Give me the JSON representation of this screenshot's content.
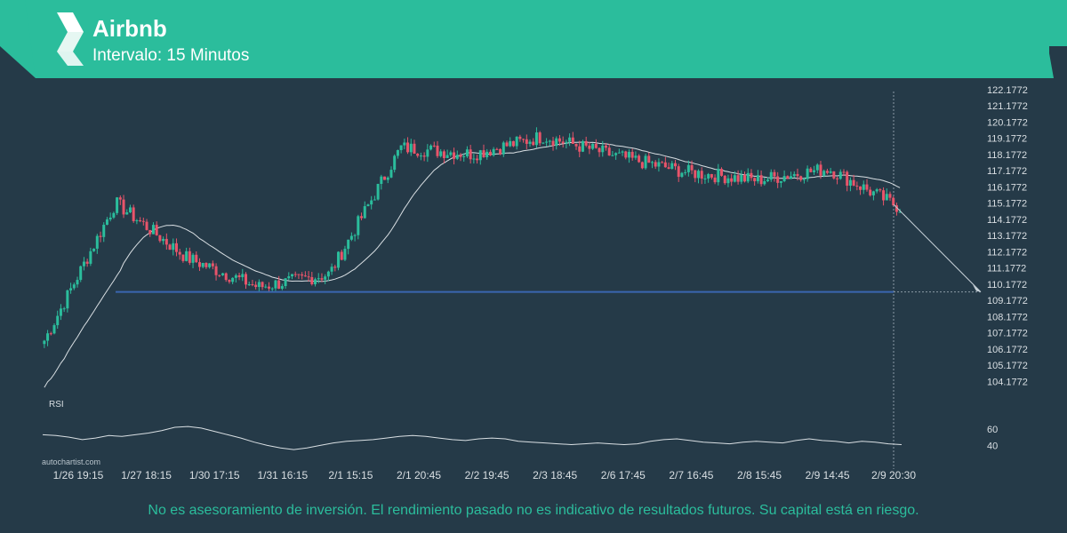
{
  "header": {
    "title": "Airbnb",
    "subtitle": "Intervalo: 15 Minutos"
  },
  "watermark": "autochartist.com",
  "disclaimer": "No es asesoramiento de inversión. El rendimiento pasado no es indicativo de resultados futuros. Su capital está en riesgo.",
  "colors": {
    "background": "#253a48",
    "accent": "#2bbd9c",
    "up_candle": "#2bbd9c",
    "down_candle": "#e8546a",
    "support_line": "#3a66b0",
    "moving_average": "#d9dfe3",
    "rsi_line": "#d9dfe3",
    "axis_text": "#d9dfe3"
  },
  "chart_data": [
    {
      "type": "candlestick",
      "title": "Airbnb",
      "subtitle": "Intervalo: 15 Minutos",
      "x_tick_labels": [
        "1/26 19:15",
        "1/27 18:15",
        "1/30 17:15",
        "1/31 16:15",
        "2/1 15:15",
        "2/1 20:45",
        "2/2 19:45",
        "2/3 18:45",
        "2/6 17:45",
        "2/7 16:45",
        "2/8 15:45",
        "2/9 14:45",
        "2/9 20:30"
      ],
      "current_time_label": "2/9 20:30",
      "y_tick_labels": [
        "122.1772",
        "121.1772",
        "120.1772",
        "119.1772",
        "118.1772",
        "117.1772",
        "116.1772",
        "115.1772",
        "114.1772",
        "113.1772",
        "112.1772",
        "111.1772",
        "110.1772",
        "109.1772",
        "108.1772",
        "107.1772",
        "106.1772",
        "105.1772",
        "104.1772"
      ],
      "ylim": [
        103.6,
        122.5
      ],
      "support_level": 109.7,
      "forecast": {
        "from": {
          "x": "2/9 20:30",
          "y": 115.1
        },
        "to": {
          "y": 109.7
        }
      },
      "approx_close_path": [
        {
          "x": "1/26 19:15",
          "y": 106.7
        },
        {
          "x": "1/27 18:15",
          "y": 115.2
        },
        {
          "x": "1/30 17:15",
          "y": 111.8
        },
        {
          "x": "1/31 16:15",
          "y": 110.0
        },
        {
          "x": "2/1 15:15",
          "y": 110.8
        },
        {
          "x": "2/1 20:45",
          "y": 118.6
        },
        {
          "x": "2/2 19:45",
          "y": 118.2
        },
        {
          "x": "2/3 18:45",
          "y": 119.3
        },
        {
          "x": "2/6 17:45",
          "y": 118.1
        },
        {
          "x": "2/7 16:45",
          "y": 117.1
        },
        {
          "x": "2/8 15:45",
          "y": 116.6
        },
        {
          "x": "2/9 14:45",
          "y": 117.3
        },
        {
          "x": "2/9 20:30",
          "y": 114.9
        }
      ],
      "moving_average": true
    },
    {
      "type": "line",
      "name": "RSI",
      "legend": "RSI",
      "y_tick_labels": [
        "60",
        "40"
      ],
      "ylim": [
        20,
        90
      ],
      "values": [
        53,
        52,
        50,
        47,
        49,
        52,
        51,
        53,
        55,
        58,
        62,
        63,
        61,
        57,
        53,
        49,
        44,
        40,
        37,
        35,
        37,
        40,
        43,
        45,
        46,
        47,
        49,
        51,
        52,
        51,
        49,
        47,
        46,
        48,
        49,
        48,
        45,
        44,
        43,
        42,
        41,
        42,
        43,
        42,
        41,
        42,
        45,
        47,
        48,
        46,
        44,
        43,
        42,
        44,
        45,
        44,
        43,
        46,
        48,
        46,
        45,
        43,
        45,
        44,
        42,
        41
      ]
    }
  ]
}
